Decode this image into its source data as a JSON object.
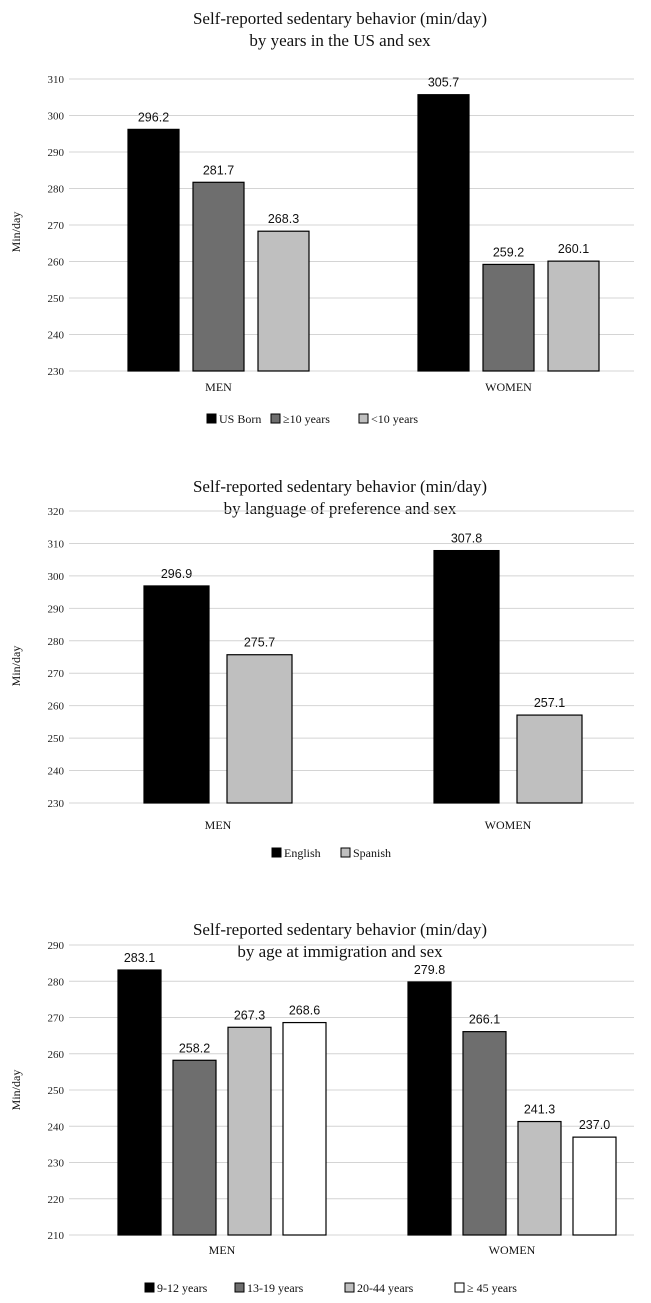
{
  "chart_data": [
    {
      "type": "bar",
      "title": "Self-reported sedentary behavior (min/day)",
      "subtitle": "by years in the US and sex",
      "ylabel": "Min/day",
      "ylim": [
        230,
        310
      ],
      "yticks": [
        230,
        240,
        250,
        260,
        270,
        280,
        290,
        300,
        310
      ],
      "categories": [
        "MEN",
        "WOMEN"
      ],
      "legend_position": "bottom",
      "grid": true,
      "series": [
        {
          "name": "US Born",
          "color": "#000000",
          "values": [
            296.2,
            305.7
          ]
        },
        {
          "name": "≥10 years",
          "color": "#6e6e6e",
          "values": [
            281.7,
            259.2
          ]
        },
        {
          "name": "<10 years",
          "color": "#bfbfbf",
          "values": [
            268.3,
            260.1
          ]
        }
      ]
    },
    {
      "type": "bar",
      "title": "Self-reported sedentary behavior (min/day)",
      "subtitle": "by language of preference and sex",
      "ylabel": "Min/day",
      "ylim": [
        230,
        320
      ],
      "yticks": [
        230,
        240,
        250,
        260,
        270,
        280,
        290,
        300,
        310,
        320
      ],
      "categories": [
        "MEN",
        "WOMEN"
      ],
      "legend_position": "bottom",
      "grid": true,
      "series": [
        {
          "name": "English",
          "color": "#000000",
          "values": [
            296.9,
            307.8
          ]
        },
        {
          "name": "Spanish",
          "color": "#bfbfbf",
          "values": [
            275.7,
            257.1
          ]
        }
      ]
    },
    {
      "type": "bar",
      "title": "Self-reported sedentary behavior (min/day)",
      "subtitle": "by age at immigration and sex",
      "ylabel": "Min/day",
      "ylim": [
        210,
        290
      ],
      "yticks": [
        210,
        220,
        230,
        240,
        250,
        260,
        270,
        280,
        290
      ],
      "categories": [
        "MEN",
        "WOMEN"
      ],
      "legend_position": "bottom",
      "grid": true,
      "series": [
        {
          "name": "9-12 years",
          "color": "#000000",
          "values": [
            283.1,
            279.8
          ]
        },
        {
          "name": "13-19 years",
          "color": "#6e6e6e",
          "values": [
            258.2,
            266.1
          ]
        },
        {
          "name": "20-44 years",
          "color": "#bfbfbf",
          "values": [
            267.3,
            241.3
          ]
        },
        {
          "name": "≥ 45 years",
          "color": "#ffffff",
          "values": [
            268.6,
            237.0
          ]
        }
      ]
    }
  ]
}
